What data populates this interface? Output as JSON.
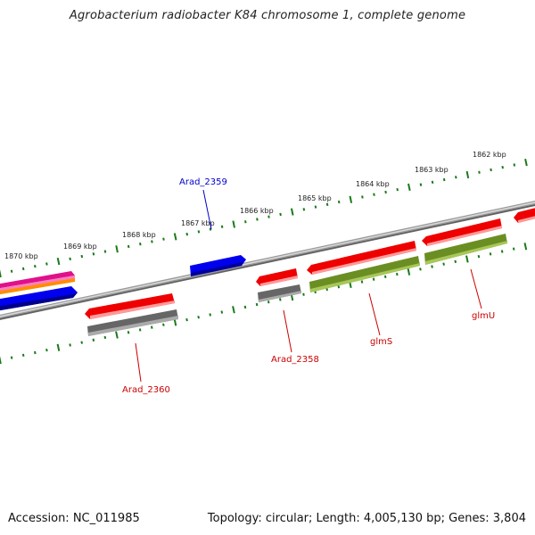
{
  "title": "Agrobacterium radiobacter K84 chromosome 1, complete genome",
  "footer": {
    "accession": "Accession: NC_011985",
    "summary": "Topology: circular; Length: 4,005,130 bp; Genes: 3,804"
  },
  "scale": {
    "kbp_labels": [
      "1862 kbp",
      "1863 kbp",
      "1864 kbp",
      "1865 kbp",
      "1866 kbp",
      "1867 kbp",
      "1868 kbp",
      "1869 kbp",
      "1870 kbp"
    ]
  },
  "genes": [
    {
      "label": "Arad_2359",
      "color": "#0000cc",
      "strand": "forward"
    },
    {
      "label": "Arad_2358",
      "color": "#cc0000",
      "strand": "reverse"
    },
    {
      "label": "glmS",
      "color": "#cc0000",
      "strand": "reverse"
    },
    {
      "label": "glmU",
      "color": "#cc0000",
      "strand": "reverse"
    },
    {
      "label": "Arad_2360",
      "color": "#cc0000",
      "strand": "reverse"
    }
  ],
  "colors": {
    "backbone": "#777777",
    "tick": "#1a7a1a",
    "cds_red": "#ee0000",
    "rna_gray": "#666666",
    "cds_green": "#6b8e23",
    "cds_blue": "#0000ee",
    "pink": "#e0108a",
    "orange": "#ff8c00"
  }
}
